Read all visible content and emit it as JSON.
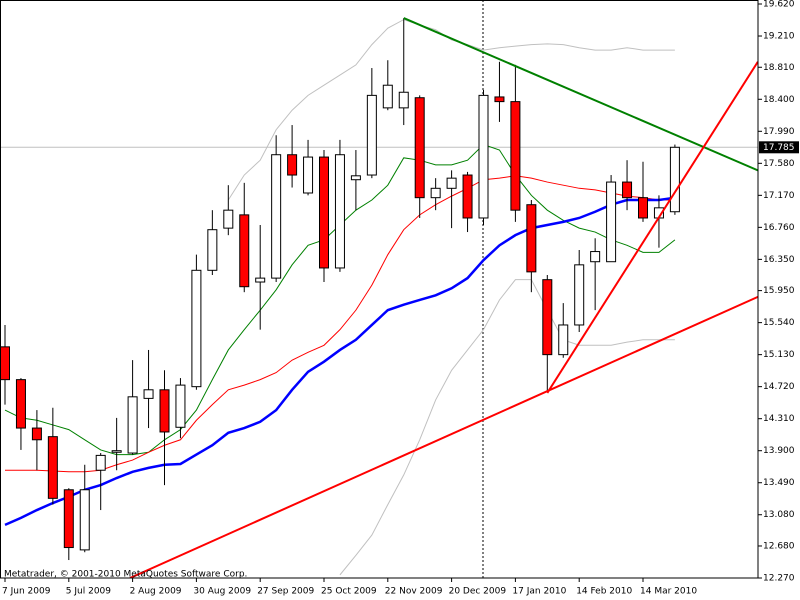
{
  "chart_data": {
    "type": "candlestick",
    "watermark": "Metatrader, © 2001-2010 MetaQuotes Software Corp.",
    "categories": [
      "7 Jun 2009",
      null,
      null,
      null,
      "5 Jul 2009",
      null,
      null,
      null,
      "2 Aug 2009",
      null,
      null,
      null,
      "30 Aug 2009",
      null,
      null,
      null,
      "27 Sep 2009",
      null,
      null,
      null,
      "25 Oct 2009",
      null,
      null,
      null,
      "22 Nov 2009",
      null,
      null,
      null,
      "20 Dec 2009",
      null,
      null,
      null,
      "17 Jan 2010",
      null,
      null,
      null,
      "14 Feb 2010",
      null,
      null,
      null,
      "14 Mar 2010",
      null,
      null
    ],
    "open": [
      15.23,
      14.81,
      14.19,
      14.08,
      13.4,
      12.63,
      13.65,
      13.88,
      13.87,
      14.57,
      14.68,
      14.2,
      14.72,
      16.21,
      16.75,
      16.92,
      16.06,
      16.11,
      17.69,
      17.2,
      17.66,
      16.24,
      17.37,
      17.43,
      18.29,
      18.29,
      18.42,
      17.14,
      17.26,
      17.43,
      16.88,
      18.43,
      18.37,
      17.05,
      16.09,
      15.13,
      15.51,
      16.32,
      16.32,
      17.34,
      17.14,
      16.88,
      16.96
    ],
    "high": [
      15.51,
      14.83,
      14.42,
      14.45,
      13.42,
      13.72,
      13.87,
      14.32,
      15.06,
      15.19,
      14.93,
      14.83,
      16.41,
      16.98,
      17.3,
      17.33,
      16.79,
      17.94,
      18.07,
      17.88,
      17.75,
      17.88,
      17.75,
      18.8,
      18.9,
      19.44,
      18.45,
      17.39,
      17.49,
      17.47,
      18.52,
      18.88,
      18.84,
      17.11,
      16.15,
      15.79,
      16.47,
      16.62,
      17.43,
      17.62,
      17.6,
      17.17,
      17.82
    ],
    "low": [
      14.49,
      13.91,
      13.65,
      13.21,
      12.5,
      12.6,
      13.14,
      13.65,
      13.85,
      14.19,
      13.46,
      14.06,
      14.68,
      16.15,
      16.66,
      15.93,
      15.45,
      16.06,
      17.27,
      17.17,
      16.06,
      16.19,
      16.98,
      17.39,
      18.26,
      18.07,
      16.88,
      16.98,
      16.75,
      16.7,
      16.79,
      18.11,
      16.83,
      15.93,
      14.65,
      15.09,
      15.42,
      15.7,
      16.32,
      16.98,
      16.83,
      16.5,
      16.92
    ],
    "close": [
      14.81,
      14.19,
      14.04,
      13.29,
      12.66,
      13.4,
      13.84,
      13.9,
      14.59,
      14.68,
      14.14,
      14.74,
      16.21,
      16.73,
      16.98,
      16.0,
      16.11,
      17.69,
      17.43,
      17.66,
      16.24,
      17.69,
      17.42,
      18.45,
      18.58,
      18.49,
      17.14,
      17.26,
      17.39,
      16.88,
      18.45,
      18.37,
      16.98,
      16.19,
      15.13,
      15.51,
      16.28,
      16.45,
      17.34,
      17.14,
      16.88,
      17.01,
      17.785
    ],
    "up_color": "#ffffff",
    "down_color": "#ff0000",
    "overlays": [
      {
        "color": "#c0c0c0",
        "width": 1,
        "values": [
          null,
          null,
          null,
          null,
          null,
          null,
          null,
          null,
          null,
          null,
          null,
          null,
          null,
          null,
          17.11,
          17.43,
          17.62,
          18.01,
          18.26,
          18.45,
          18.58,
          18.71,
          18.84,
          19.1,
          19.31,
          19.42,
          19.35,
          19.29,
          19.16,
          19.1,
          19.03,
          19.06,
          19.08,
          19.1,
          19.11,
          19.1,
          19.06,
          19.03,
          19.03,
          19.06,
          19.03,
          19.03,
          19.03
        ]
      },
      {
        "color": "#c0c0c0",
        "width": 1,
        "values": [
          null,
          null,
          null,
          null,
          null,
          null,
          null,
          null,
          null,
          null,
          null,
          null,
          null,
          null,
          null,
          null,
          null,
          null,
          null,
          null,
          null,
          12.31,
          12.56,
          12.82,
          13.21,
          13.59,
          14.04,
          14.55,
          14.93,
          15.19,
          15.45,
          15.83,
          16.09,
          16.09,
          15.7,
          15.32,
          15.25,
          15.25,
          15.25,
          15.29,
          15.32,
          15.32,
          15.32
        ]
      },
      {
        "color": "#008000",
        "width": 1,
        "values": [
          14.42,
          14.32,
          14.29,
          14.23,
          14.17,
          14.04,
          13.91,
          13.85,
          13.85,
          13.88,
          14.04,
          14.17,
          14.42,
          14.81,
          15.19,
          15.45,
          15.7,
          15.96,
          16.28,
          16.53,
          16.6,
          16.79,
          16.98,
          17.11,
          17.3,
          17.65,
          17.62,
          17.56,
          17.56,
          17.62,
          17.82,
          17.75,
          17.43,
          17.17,
          16.98,
          16.85,
          16.75,
          16.7,
          16.6,
          16.53,
          16.44,
          16.44,
          16.6
        ]
      },
      {
        "color": "#ff0000",
        "width": 1,
        "values": [
          13.65,
          13.65,
          13.65,
          13.64,
          13.63,
          13.63,
          13.65,
          13.72,
          13.78,
          13.88,
          13.97,
          14.04,
          14.29,
          14.49,
          14.68,
          14.74,
          14.81,
          14.9,
          15.06,
          15.16,
          15.25,
          15.45,
          15.7,
          16.02,
          16.41,
          16.73,
          16.92,
          17.05,
          17.16,
          17.26,
          17.37,
          17.39,
          17.42,
          17.39,
          17.34,
          17.3,
          17.26,
          17.24,
          17.2,
          17.16,
          17.14,
          17.11,
          17.11
        ]
      },
      {
        "color": "#0000ff",
        "width": 2.5,
        "values": [
          12.95,
          13.04,
          13.14,
          13.23,
          13.31,
          13.4,
          13.46,
          13.55,
          13.63,
          13.68,
          13.72,
          13.73,
          13.85,
          13.97,
          14.13,
          14.19,
          14.27,
          14.42,
          14.68,
          14.91,
          15.04,
          15.19,
          15.32,
          15.51,
          15.7,
          15.77,
          15.83,
          15.89,
          15.98,
          16.11,
          16.34,
          16.53,
          16.66,
          16.75,
          16.79,
          16.83,
          16.88,
          16.96,
          17.05,
          17.11,
          17.11,
          17.11,
          17.14
        ]
      }
    ],
    "trendlines": [
      {
        "color": "#008000",
        "x": [
          25,
          47.2
        ],
        "values": [
          19.44,
          17.49
        ]
      },
      {
        "color": "#ff0000",
        "x": [
          7.84,
          47.2
        ],
        "values": [
          12.27,
          15.87
        ]
      },
      {
        "color": "#ff0000",
        "x": [
          34,
          47.2
        ],
        "values": [
          14.64,
          18.88
        ]
      }
    ],
    "current_price": 17.785,
    "ylim": [
      12.27,
      19.62
    ],
    "yticks": [
      {
        "value": 19.62,
        "label": "19.620"
      },
      {
        "value": 19.21,
        "label": "19.210"
      },
      {
        "value": 18.81,
        "label": "18.810"
      },
      {
        "value": 18.4,
        "label": "18.400"
      },
      {
        "value": 17.99,
        "label": "17.990"
      },
      {
        "value": 17.58,
        "label": "17.580"
      },
      {
        "value": 17.17,
        "label": "17.170"
      },
      {
        "value": 16.76,
        "label": "16.760"
      },
      {
        "value": 16.35,
        "label": "16.350"
      },
      {
        "value": 15.95,
        "label": "15.950"
      },
      {
        "value": 15.54,
        "label": "15.540"
      },
      {
        "value": 15.13,
        "label": "15.130"
      },
      {
        "value": 14.72,
        "label": "14.720"
      },
      {
        "value": 14.31,
        "label": "14.310"
      },
      {
        "value": 13.9,
        "label": "13.900"
      },
      {
        "value": 13.49,
        "label": "13.490"
      },
      {
        "value": 13.08,
        "label": "13.080"
      },
      {
        "value": 12.68,
        "label": "12.680"
      },
      {
        "value": 12.27,
        "label": "12.270"
      }
    ],
    "grid": false
  }
}
